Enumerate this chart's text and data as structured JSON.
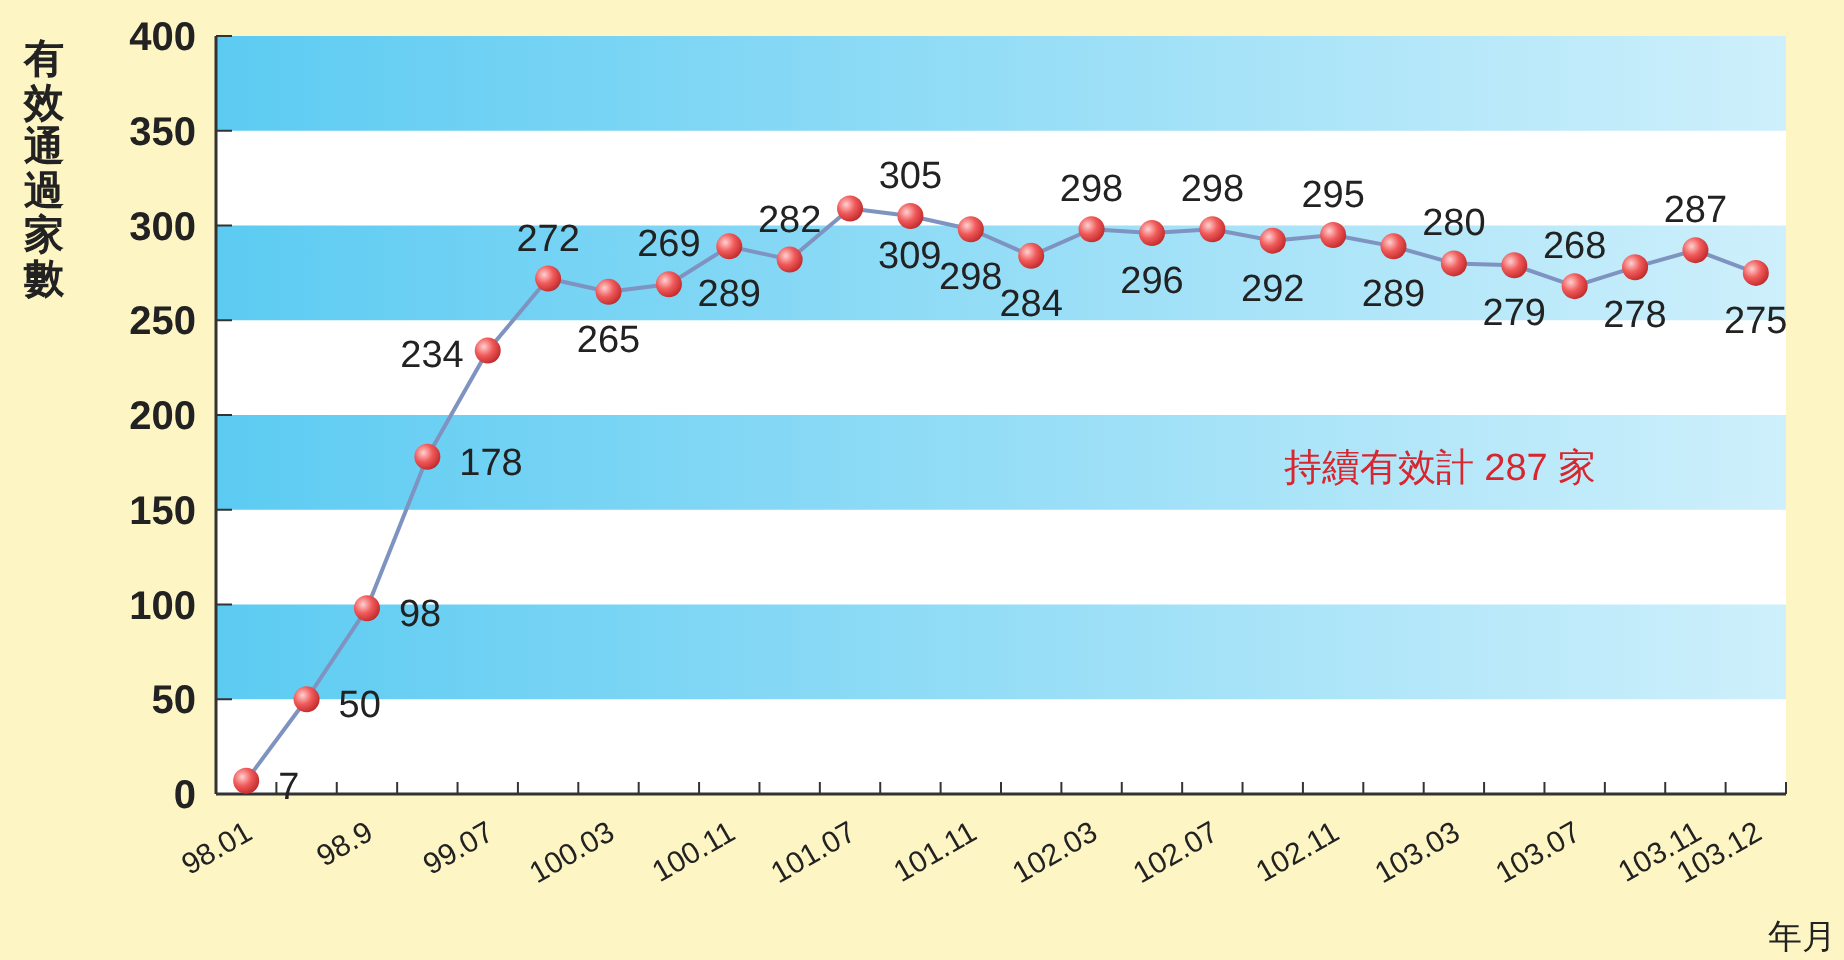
{
  "chart_data": {
    "type": "line",
    "ylabel": "有效通過家數",
    "xlabel": "年月",
    "categories": [
      "98.01",
      null,
      "98.9",
      null,
      "99.07",
      null,
      "100.03",
      null,
      "100.11",
      null,
      "101.07",
      null,
      "101.11",
      null,
      "102.03",
      null,
      "102.07",
      null,
      "102.11",
      null,
      "103.03",
      null,
      "103.07",
      null,
      "103.11",
      "103.12"
    ],
    "series": [
      {
        "color": "#7f93c0",
        "values": [
          7,
          50,
          98,
          178,
          234,
          272,
          265,
          269,
          289,
          282,
          309,
          305,
          298,
          284,
          298,
          296,
          298,
          292,
          295,
          289,
          280,
          279,
          268,
          278,
          287,
          275
        ]
      }
    ],
    "ylim": [
      0,
      400
    ],
    "yticks": [
      0,
      50,
      100,
      150,
      200,
      250,
      300,
      350,
      400
    ],
    "bands": [
      {
        "axis": "y",
        "from": 50,
        "to": 100,
        "color": "#5ccbf2"
      },
      {
        "axis": "y",
        "from": 150,
        "to": 200,
        "color": "#5ccbf2"
      },
      {
        "axis": "y",
        "from": 250,
        "to": 300,
        "color": "#5ccbf2"
      },
      {
        "axis": "y",
        "from": 350,
        "to": 400,
        "color": "#5ccbf2"
      }
    ],
    "annotations": [
      "持續有效計 287 家"
    ],
    "marker": "circle",
    "line_style": "solid",
    "data_labels": true
  }
}
